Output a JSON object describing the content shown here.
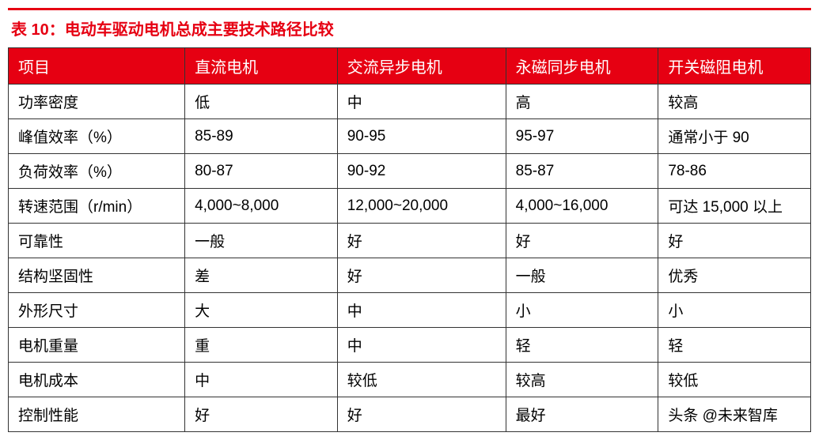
{
  "title": "表 10：电动车驱动电机总成主要技术路径比较",
  "colors": {
    "accent": "#e60012",
    "border": "#333333",
    "header_text": "#ffffff",
    "body_text": "#000000",
    "background": "#ffffff"
  },
  "typography": {
    "title_fontsize": 20,
    "header_fontsize": 20,
    "cell_fontsize": 19,
    "font_family": "Microsoft YaHei"
  },
  "table": {
    "type": "table",
    "columns": [
      "项目",
      "直流电机",
      "交流异步电机",
      "永磁同步电机",
      "开关磁阻电机"
    ],
    "column_widths_pct": [
      22,
      19,
      21,
      19,
      19
    ],
    "rows": [
      [
        "功率密度",
        "低",
        "中",
        "高",
        "较高"
      ],
      [
        "峰值效率（%）",
        "85-89",
        "90-95",
        "95-97",
        "通常小于 90"
      ],
      [
        "负荷效率（%）",
        "80-87",
        "90-92",
        "85-87",
        "78-86"
      ],
      [
        "转速范围（r/min）",
        "4,000~8,000",
        "12,000~20,000",
        "4,000~16,000",
        "可达 15,000 以上"
      ],
      [
        "可靠性",
        "一般",
        "好",
        "好",
        "好"
      ],
      [
        "结构坚固性",
        "差",
        "好",
        "一般",
        "优秀"
      ],
      [
        "外形尺寸",
        "大",
        "中",
        "小",
        "小"
      ],
      [
        "电机重量",
        "重",
        "中",
        "轻",
        "轻"
      ],
      [
        "电机成本",
        "中",
        "较低",
        "较高",
        "较低"
      ],
      [
        "控制性能",
        "好",
        "好",
        "最好",
        "头条 @未来智库"
      ]
    ]
  },
  "watermark": "头条 @未来智库"
}
